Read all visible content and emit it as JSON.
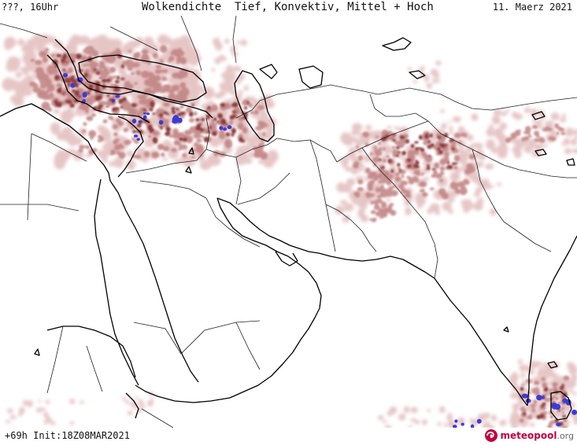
{
  "header": {
    "left": "???, 16Uhr",
    "title": "Wolkendichte  Tief, Konvektiv, Mittel + Hoch",
    "date": "11. Maerz 2021"
  },
  "footer": {
    "init": "+69h Init:18Z08MAR2021",
    "logo_main": "meteopool",
    "logo_tld": ".org"
  },
  "colors": {
    "cloud_light": "#e2bcbc",
    "cloud_medium": "#c08080",
    "cloud_dense": "#8a3a3a",
    "convective": "#3b3bd9",
    "coastline": "#000000",
    "borders": "#222222",
    "logo": "#c1003f"
  },
  "icons": {
    "logo_icon": "meteopool-swirl-icon"
  }
}
